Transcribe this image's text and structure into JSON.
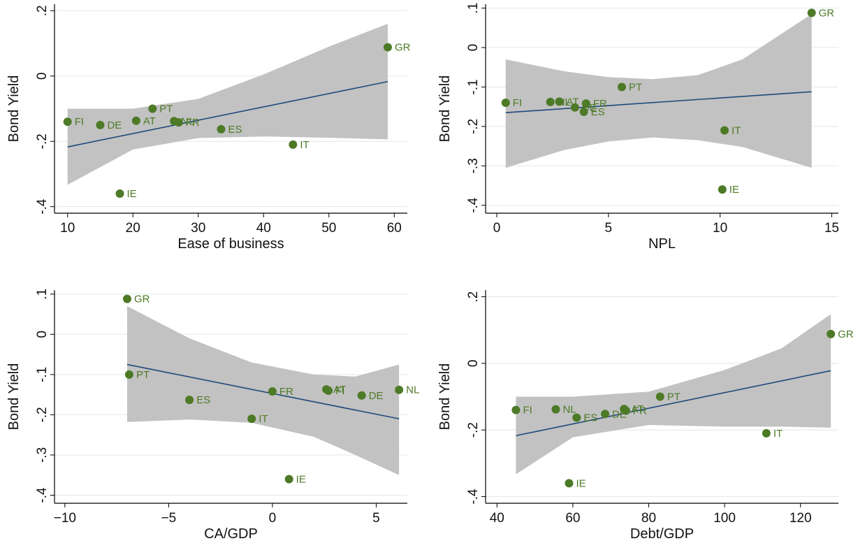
{
  "colors": {
    "marker": "#4d7a26",
    "band": "#c2c2c2",
    "fit_line": "#1e4a7a",
    "grid": "#dfe8ec",
    "axis": "#000000"
  },
  "chart_data": [
    {
      "type": "scatter",
      "xlabel": "Ease of business",
      "ylabel": "Bond Yield",
      "xlim": [
        8,
        62
      ],
      "ylim": [
        -0.42,
        0.22
      ],
      "xticks": [
        10,
        20,
        30,
        40,
        50,
        60
      ],
      "yticks": [
        -0.4,
        -0.2,
        0,
        0.2
      ],
      "ytick_labels": [
        "-.4",
        "-.2",
        "0",
        ".2"
      ],
      "points": [
        {
          "label": "FI",
          "x": 10,
          "y": -0.14
        },
        {
          "label": "DE",
          "x": 15,
          "y": -0.15
        },
        {
          "label": "IE",
          "x": 18,
          "y": -0.36
        },
        {
          "label": "AT",
          "x": 20.5,
          "y": -0.137
        },
        {
          "label": "PT",
          "x": 23,
          "y": -0.1
        },
        {
          "label": "NL",
          "x": 26.3,
          "y": -0.138
        },
        {
          "label": "FR",
          "x": 27,
          "y": -0.142
        },
        {
          "label": "ES",
          "x": 33.5,
          "y": -0.163
        },
        {
          "label": "IT",
          "x": 44.5,
          "y": -0.21
        },
        {
          "label": "GR",
          "x": 59,
          "y": 0.088
        }
      ],
      "fit": {
        "x": [
          10,
          59
        ],
        "y": [
          -0.217,
          -0.017
        ]
      },
      "ci": {
        "x": [
          10,
          20,
          30,
          40,
          50,
          59
        ],
        "lower": [
          -0.333,
          -0.225,
          -0.19,
          -0.185,
          -0.189,
          -0.194
        ],
        "upper": [
          -0.1,
          -0.1,
          -0.07,
          0.005,
          0.09,
          0.16
        ]
      }
    },
    {
      "type": "scatter",
      "xlabel": "NPL",
      "ylabel": "Bond Yield",
      "xlim": [
        -0.5,
        15.3
      ],
      "ylim": [
        -0.42,
        0.11
      ],
      "xticks": [
        0,
        5,
        10,
        15
      ],
      "yticks": [
        -0.4,
        -0.3,
        -0.2,
        -0.1,
        0,
        0.1
      ],
      "ytick_labels": [
        "-.4",
        "-.3",
        "-.2",
        "-.1",
        "0",
        ".1"
      ],
      "points": [
        {
          "label": "FI",
          "x": 0.4,
          "y": -0.14
        },
        {
          "label": "NL",
          "x": 2.4,
          "y": -0.138
        },
        {
          "label": "AT",
          "x": 2.8,
          "y": -0.137
        },
        {
          "label": "DE",
          "x": 3.5,
          "y": -0.152
        },
        {
          "label": "FR",
          "x": 4,
          "y": -0.142
        },
        {
          "label": "ES",
          "x": 3.9,
          "y": -0.163
        },
        {
          "label": "PT",
          "x": 5.6,
          "y": -0.1
        },
        {
          "label": "IT",
          "x": 10.2,
          "y": -0.21
        },
        {
          "label": "IE",
          "x": 10.1,
          "y": -0.36
        },
        {
          "label": "GR",
          "x": 14.1,
          "y": 0.088
        }
      ],
      "fit": {
        "x": [
          0.4,
          14.1
        ],
        "y": [
          -0.165,
          -0.112
        ]
      },
      "ci": {
        "x": [
          0.4,
          3,
          5,
          7,
          9,
          11,
          14.1
        ],
        "lower": [
          -0.305,
          -0.26,
          -0.238,
          -0.228,
          -0.235,
          -0.252,
          -0.305
        ],
        "upper": [
          -0.03,
          -0.06,
          -0.075,
          -0.08,
          -0.07,
          -0.03,
          0.085
        ]
      }
    },
    {
      "type": "scatter",
      "xlabel": "CA/GDP",
      "ylabel": "Bond Yield",
      "xlim": [
        -10.5,
        6.5
      ],
      "ylim": [
        -0.42,
        0.11
      ],
      "xticks": [
        -10,
        -5,
        0,
        5
      ],
      "yticks": [
        -0.4,
        -0.3,
        -0.2,
        -0.1,
        0,
        0.1
      ],
      "ytick_labels": [
        "-.4",
        "-.3",
        "-.2",
        "-.1",
        "0",
        ".1"
      ],
      "points": [
        {
          "label": "GR",
          "x": -7,
          "y": 0.088
        },
        {
          "label": "PT",
          "x": -6.9,
          "y": -0.1
        },
        {
          "label": "ES",
          "x": -4,
          "y": -0.163
        },
        {
          "label": "IT",
          "x": -1,
          "y": -0.21
        },
        {
          "label": "FR",
          "x": 0,
          "y": -0.142
        },
        {
          "label": "IE",
          "x": 0.8,
          "y": -0.36
        },
        {
          "label": "AT",
          "x": 2.6,
          "y": -0.137
        },
        {
          "label": "FI",
          "x": 2.7,
          "y": -0.14
        },
        {
          "label": "DE",
          "x": 4.3,
          "y": -0.152
        },
        {
          "label": "NL",
          "x": 6.1,
          "y": -0.138
        }
      ],
      "fit": {
        "x": [
          -7,
          6.1
        ],
        "y": [
          -0.075,
          -0.21
        ]
      },
      "ci": {
        "x": [
          -7,
          -4,
          -1,
          2,
          4,
          6.1
        ],
        "lower": [
          -0.218,
          -0.212,
          -0.22,
          -0.255,
          -0.3,
          -0.35
        ],
        "upper": [
          0.07,
          -0.01,
          -0.07,
          -0.1,
          -0.105,
          -0.075
        ]
      }
    },
    {
      "type": "scatter",
      "xlabel": "Debt/GDP",
      "ylabel": "Bond Yield",
      "xlim": [
        37,
        130
      ],
      "ylim": [
        -0.42,
        0.22
      ],
      "xticks": [
        40,
        60,
        80,
        100,
        120
      ],
      "yticks": [
        -0.4,
        -0.2,
        0,
        0.2
      ],
      "ytick_labels": [
        "-.4",
        "-.2",
        "0",
        ".2"
      ],
      "points": [
        {
          "label": "FI",
          "x": 45,
          "y": -0.14
        },
        {
          "label": "NL",
          "x": 55.5,
          "y": -0.138
        },
        {
          "label": "IE",
          "x": 59,
          "y": -0.36
        },
        {
          "label": "ES",
          "x": 61,
          "y": -0.163
        },
        {
          "label": "DE",
          "x": 68.5,
          "y": -0.152
        },
        {
          "label": "AT",
          "x": 73.5,
          "y": -0.137
        },
        {
          "label": "FR",
          "x": 74,
          "y": -0.142
        },
        {
          "label": "PT",
          "x": 83,
          "y": -0.1
        },
        {
          "label": "IT",
          "x": 111,
          "y": -0.21
        },
        {
          "label": "GR",
          "x": 128,
          "y": 0.088
        }
      ],
      "fit": {
        "x": [
          45,
          128
        ],
        "y": [
          -0.217,
          -0.022
        ]
      },
      "ci": {
        "x": [
          45,
          60,
          80,
          100,
          115,
          128
        ],
        "lower": [
          -0.333,
          -0.222,
          -0.185,
          -0.19,
          -0.19,
          -0.193
        ],
        "upper": [
          -0.1,
          -0.1,
          -0.085,
          -0.02,
          0.045,
          0.148
        ]
      }
    }
  ]
}
